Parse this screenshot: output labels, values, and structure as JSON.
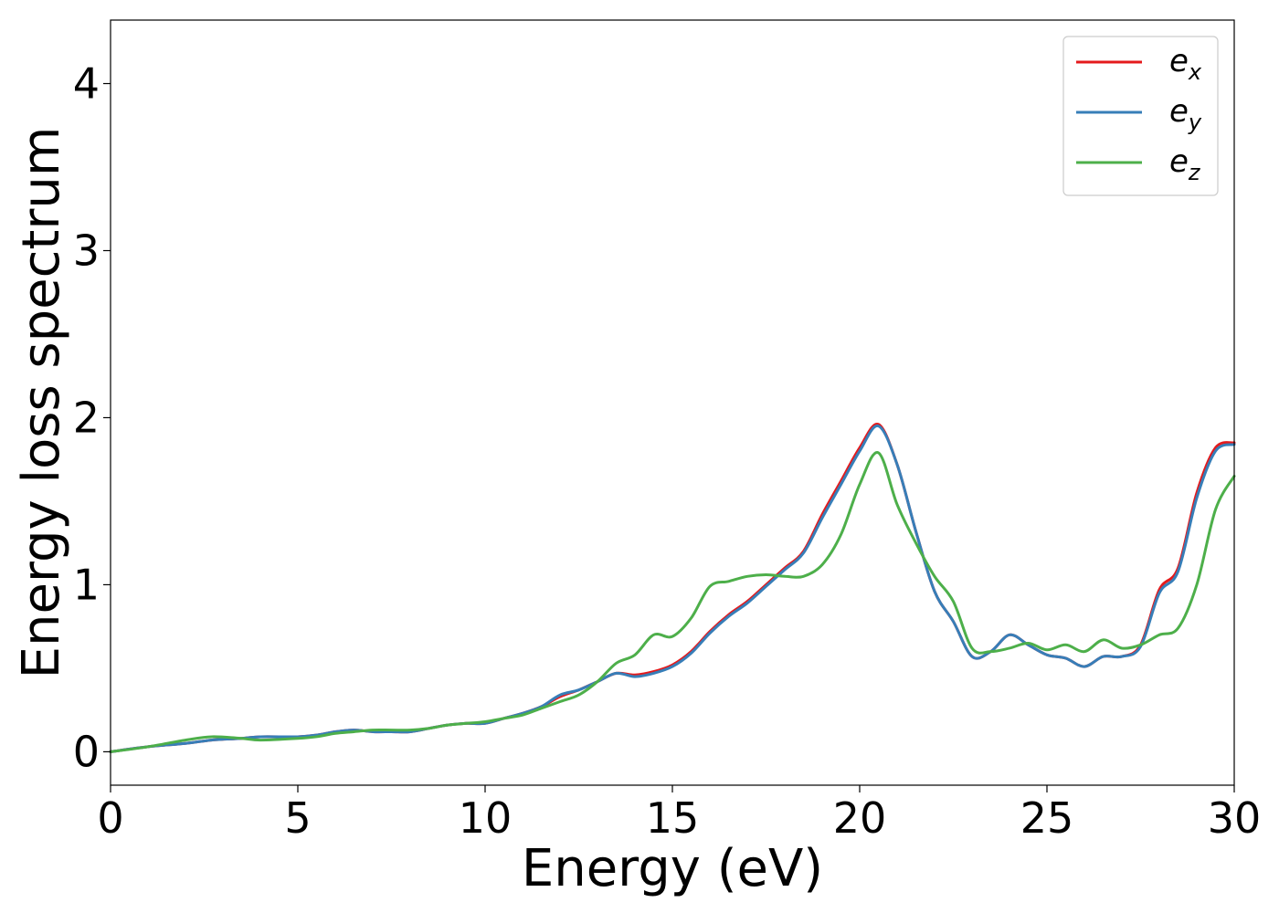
{
  "chart_data": {
    "type": "line",
    "title": "",
    "xlabel": "Energy (eV)",
    "ylabel": "Energy loss spectrum",
    "xlim": [
      0,
      30
    ],
    "ylim": [
      -0.2,
      4.38
    ],
    "xticks": [
      0,
      5,
      10,
      15,
      20,
      25,
      30
    ],
    "yticks": [
      0,
      1,
      2,
      3,
      4
    ],
    "xtick_labels": [
      "0",
      "5",
      "10",
      "15",
      "20",
      "25",
      "30"
    ],
    "ytick_labels": [
      "0",
      "1",
      "2",
      "3",
      "4"
    ],
    "grid": false,
    "legend_position": "top-right",
    "x": [
      0,
      1,
      2,
      2.7,
      3.5,
      4,
      5,
      5.5,
      6,
      6.5,
      7,
      7.5,
      8,
      8.5,
      9,
      9.5,
      10,
      10.5,
      11,
      11.5,
      12,
      12.5,
      13,
      13.5,
      14,
      14.5,
      15,
      15.5,
      16,
      16.5,
      17,
      17.5,
      18,
      18.5,
      19,
      19.5,
      20,
      20.5,
      21,
      21.5,
      22,
      22.5,
      23,
      23.5,
      24,
      24.5,
      25,
      25.5,
      26,
      26.5,
      27,
      27.5,
      28,
      28.5,
      29,
      29.5,
      30
    ],
    "series": [
      {
        "name": "e",
        "subscript": "x",
        "color": "#e41a1c",
        "values": [
          0.0,
          0.03,
          0.05,
          0.07,
          0.08,
          0.09,
          0.09,
          0.1,
          0.12,
          0.13,
          0.12,
          0.12,
          0.12,
          0.14,
          0.16,
          0.17,
          0.17,
          0.2,
          0.23,
          0.27,
          0.33,
          0.37,
          0.42,
          0.47,
          0.46,
          0.48,
          0.52,
          0.6,
          0.72,
          0.82,
          0.9,
          1.0,
          1.1,
          1.2,
          1.42,
          1.62,
          1.82,
          1.96,
          1.72,
          1.32,
          0.96,
          0.78,
          0.57,
          0.6,
          0.7,
          0.64,
          0.58,
          0.56,
          0.51,
          0.57,
          0.57,
          0.64,
          0.97,
          1.1,
          1.55,
          1.82,
          1.85
        ]
      },
      {
        "name": "e",
        "subscript": "y",
        "color": "#377eb8",
        "values": [
          0.0,
          0.03,
          0.05,
          0.07,
          0.08,
          0.09,
          0.09,
          0.1,
          0.12,
          0.13,
          0.12,
          0.12,
          0.12,
          0.14,
          0.16,
          0.17,
          0.17,
          0.2,
          0.23,
          0.27,
          0.34,
          0.37,
          0.42,
          0.47,
          0.45,
          0.47,
          0.51,
          0.59,
          0.71,
          0.81,
          0.89,
          0.99,
          1.09,
          1.19,
          1.4,
          1.6,
          1.8,
          1.95,
          1.72,
          1.32,
          0.96,
          0.78,
          0.57,
          0.6,
          0.7,
          0.64,
          0.58,
          0.56,
          0.51,
          0.57,
          0.57,
          0.63,
          0.95,
          1.08,
          1.52,
          1.8,
          1.84
        ]
      },
      {
        "name": "e",
        "subscript": "z",
        "color": "#4daf4a",
        "values": [
          0.0,
          0.03,
          0.07,
          0.09,
          0.08,
          0.07,
          0.08,
          0.09,
          0.11,
          0.12,
          0.13,
          0.13,
          0.13,
          0.14,
          0.16,
          0.17,
          0.18,
          0.2,
          0.22,
          0.26,
          0.3,
          0.34,
          0.42,
          0.53,
          0.58,
          0.7,
          0.69,
          0.8,
          0.99,
          1.02,
          1.05,
          1.06,
          1.05,
          1.05,
          1.12,
          1.3,
          1.6,
          1.79,
          1.48,
          1.25,
          1.05,
          0.9,
          0.62,
          0.6,
          0.62,
          0.65,
          0.61,
          0.64,
          0.6,
          0.67,
          0.62,
          0.64,
          0.7,
          0.74,
          1.0,
          1.45,
          1.65
        ]
      }
    ]
  }
}
